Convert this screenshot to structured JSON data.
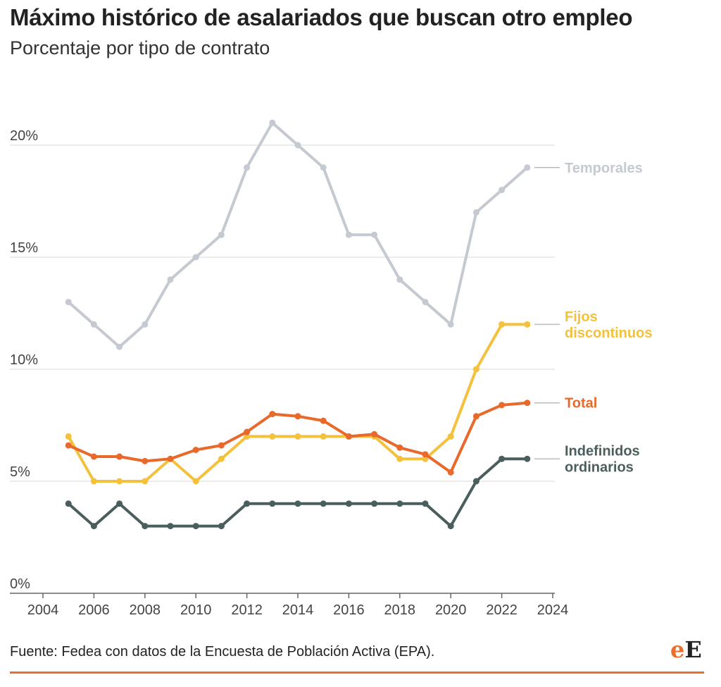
{
  "header": {
    "title": "Máximo histórico de asalariados que buscan otro empleo",
    "subtitle": "Porcentaje por tipo de contrato"
  },
  "footer": {
    "source": "Fuente: Fedea con datos de la Encuesta de Población Activa (EPA).",
    "logo_left": "e",
    "logo_right": "E"
  },
  "chart_data": {
    "type": "line",
    "title": "Máximo histórico de asalariados que buscan otro empleo",
    "subtitle": "Porcentaje por tipo de contrato",
    "x": [
      2005,
      2006,
      2007,
      2008,
      2009,
      2010,
      2011,
      2012,
      2013,
      2014,
      2015,
      2016,
      2017,
      2018,
      2019,
      2020,
      2021,
      2022,
      2023
    ],
    "xlim": [
      2004,
      2024
    ],
    "ylim": [
      0,
      20
    ],
    "x_ticks": [
      2004,
      2006,
      2008,
      2010,
      2012,
      2014,
      2016,
      2018,
      2020,
      2022,
      2024
    ],
    "y_ticks": [
      0,
      5,
      10,
      15,
      20
    ],
    "y_tick_labels": [
      "0%",
      "5%",
      "10%",
      "15%",
      "20%"
    ],
    "grid": "horizontal",
    "legend": "direct labels at right end of lines",
    "series": [
      {
        "name": "Temporales",
        "color": "#c5c9d0",
        "values": [
          13,
          12,
          11,
          12,
          14,
          15,
          16,
          19,
          21,
          20,
          19,
          16,
          16,
          14,
          13,
          12,
          17,
          18,
          19
        ]
      },
      {
        "name": "Fijos discontinuos",
        "color": "#f4c13d",
        "values": [
          7,
          5,
          5,
          5,
          6,
          5,
          6,
          7,
          7,
          7,
          7,
          7,
          7,
          6,
          6,
          7,
          10,
          12,
          12
        ]
      },
      {
        "name": "Total",
        "color": "#e8692a",
        "values": [
          6.6,
          6.1,
          6.1,
          5.9,
          6.0,
          6.4,
          6.6,
          7.2,
          8.0,
          7.9,
          7.7,
          7.0,
          7.1,
          6.5,
          6.2,
          5.4,
          7.9,
          8.4,
          8.5
        ]
      },
      {
        "name": "Indefinidos ordinarios",
        "color": "#4a5e5d",
        "values": [
          4,
          3,
          4,
          3,
          3,
          3,
          3,
          4,
          4,
          4,
          4,
          4,
          4,
          4,
          4,
          3,
          5,
          6,
          6
        ]
      }
    ]
  }
}
